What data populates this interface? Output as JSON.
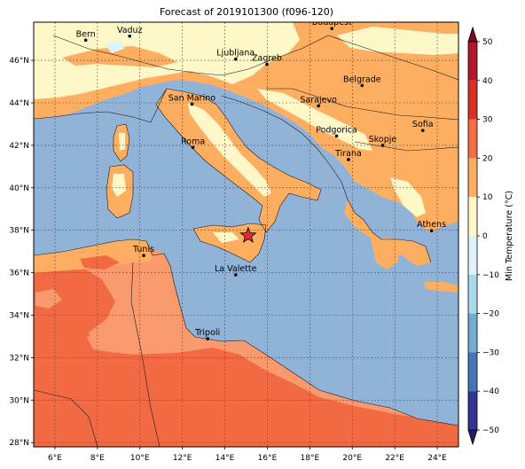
{
  "title": "Forecast of 2019101300 (f096-120)",
  "map": {
    "lon_range": [
      5,
      25
    ],
    "lat_range": [
      27.8,
      47.8
    ],
    "lon_ticks": [
      {
        "value": 6,
        "label": "6°E"
      },
      {
        "value": 8,
        "label": "8°E"
      },
      {
        "value": 10,
        "label": "10°E"
      },
      {
        "value": 12,
        "label": "12°E"
      },
      {
        "value": 14,
        "label": "14°E"
      },
      {
        "value": 16,
        "label": "16°E"
      },
      {
        "value": 18,
        "label": "18°E"
      },
      {
        "value": 20,
        "label": "20°E"
      },
      {
        "value": 22,
        "label": "22°E"
      },
      {
        "value": 24,
        "label": "24°E"
      }
    ],
    "lat_ticks": [
      {
        "value": 28,
        "label": "28°N"
      },
      {
        "value": 30,
        "label": "30°N"
      },
      {
        "value": 32,
        "label": "32°N"
      },
      {
        "value": 34,
        "label": "34°N"
      },
      {
        "value": 36,
        "label": "36°N"
      },
      {
        "value": 38,
        "label": "38°N"
      },
      {
        "value": 40,
        "label": "40°N"
      },
      {
        "value": 42,
        "label": "42°N"
      },
      {
        "value": 44,
        "label": "44°N"
      },
      {
        "value": 46,
        "label": "46°N"
      }
    ],
    "cities": [
      {
        "name": "Bern",
        "lon": 7.45,
        "lat": 46.95
      },
      {
        "name": "Vaduz",
        "lon": 9.52,
        "lat": 47.14
      },
      {
        "name": "Budapest",
        "lon": 19.04,
        "lat": 47.5
      },
      {
        "name": "Ljubljana",
        "lon": 14.51,
        "lat": 46.06
      },
      {
        "name": "Zagreb",
        "lon": 15.98,
        "lat": 45.81
      },
      {
        "name": "Belgrade",
        "lon": 20.46,
        "lat": 44.82
      },
      {
        "name": "San Marino",
        "lon": 12.45,
        "lat": 43.94
      },
      {
        "name": "Sarajevo",
        "lon": 18.41,
        "lat": 43.86
      },
      {
        "name": "Sofia",
        "lon": 23.32,
        "lat": 42.7
      },
      {
        "name": "Podgorica",
        "lon": 19.26,
        "lat": 42.44
      },
      {
        "name": "Skopje",
        "lon": 21.43,
        "lat": 42.0
      },
      {
        "name": "Roma",
        "lon": 12.5,
        "lat": 41.9
      },
      {
        "name": "Tirana",
        "lon": 19.82,
        "lat": 41.33
      },
      {
        "name": "Athens",
        "lon": 23.73,
        "lat": 37.98
      },
      {
        "name": "Tunis",
        "lon": 10.18,
        "lat": 36.81
      },
      {
        "name": "La Valette",
        "lon": 14.51,
        "lat": 35.9
      },
      {
        "name": "Tripoli",
        "lon": 13.19,
        "lat": 32.89
      }
    ],
    "marker": {
      "symbol": "star",
      "lon": 15.1,
      "lat": 37.75,
      "color": "#e8292f"
    }
  },
  "colorbar": {
    "label": "Min Temperature (°C)",
    "range": [
      -50,
      50
    ],
    "ticks": [
      {
        "value": 50,
        "label": "50"
      },
      {
        "value": 40,
        "label": "40"
      },
      {
        "value": 30,
        "label": "30"
      },
      {
        "value": 20,
        "label": "20"
      },
      {
        "value": 10,
        "label": "10"
      },
      {
        "value": 0,
        "label": "0"
      },
      {
        "value": -10,
        "label": "−10"
      },
      {
        "value": -20,
        "label": "−20"
      },
      {
        "value": -30,
        "label": "−30"
      },
      {
        "value": -40,
        "label": "−40"
      },
      {
        "value": -50,
        "label": "−50"
      }
    ],
    "bins": [
      {
        "from": 40,
        "to": 50,
        "color": "#b2182b"
      },
      {
        "from": 30,
        "to": 40,
        "color": "#d73027"
      },
      {
        "from": 20,
        "to": 30,
        "color": "#f46d43"
      },
      {
        "from": 10,
        "to": 20,
        "color": "#fdae61"
      },
      {
        "from": 0,
        "to": 10,
        "color": "#fef7c8"
      },
      {
        "from": -10,
        "to": 0,
        "color": "#e0f3f8"
      },
      {
        "from": -20,
        "to": -10,
        "color": "#abd9e9"
      },
      {
        "from": -30,
        "to": -20,
        "color": "#74add1"
      },
      {
        "from": -40,
        "to": -30,
        "color": "#4575b4"
      },
      {
        "from": -50,
        "to": -40,
        "color": "#313695"
      }
    ],
    "over_color": "#7b0b1f",
    "under_color": "#1f1f6e"
  }
}
